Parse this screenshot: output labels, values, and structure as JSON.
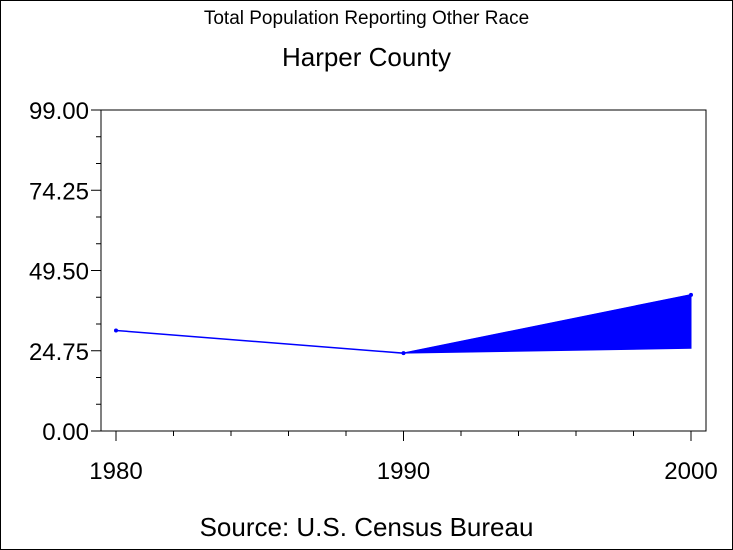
{
  "title": "Total Population Reporting Other Race",
  "subtitle": "Harper County",
  "footnote": "Source: U.S. Census Bureau",
  "chart_data": {
    "type": "line",
    "x": [
      1980,
      1990,
      2000
    ],
    "values": [
      31,
      24,
      42
    ],
    "band": {
      "x": [
        1990,
        2000
      ],
      "lower": [
        24,
        25.5
      ],
      "upper": [
        24,
        42
      ]
    },
    "ylim": [
      0,
      99
    ],
    "xlim": [
      1980,
      2000
    ],
    "y_ticks": [
      "99.00",
      "74.25",
      "49.50",
      "24.75",
      "0.00"
    ],
    "y_tick_values": [
      99,
      74.25,
      49.5,
      24.75,
      0
    ],
    "x_ticks": [
      "1980",
      "1990",
      "2000"
    ],
    "x_tick_values": [
      1980,
      1990,
      2000
    ],
    "color": "#0000ff",
    "grid": false
  }
}
